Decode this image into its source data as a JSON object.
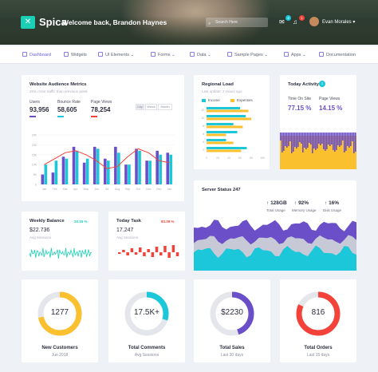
{
  "header": {
    "logo": "Spica",
    "welcome": "Welcome back, Brandon Haynes",
    "search_placeholder": "Search Here",
    "mail_badge": "4",
    "bell_badge": "1",
    "user": "Evan Morales"
  },
  "nav": [
    "Dashboard",
    "Widgets",
    "UI Elements",
    "Forms",
    "Data",
    "Sample Pages",
    "Apps",
    "Documentation"
  ],
  "audience": {
    "title": "Website Audience Metrics",
    "subtitle": "25% more traffic than previous week",
    "users_label": "Users",
    "users": "93,956",
    "bounce_label": "Bounce Rate",
    "bounce": "58,605",
    "views_label": "Page Views",
    "views": "78,254",
    "ranges": [
      "Day",
      "Week",
      "Month"
    ],
    "chart_data": {
      "type": "bar",
      "x": [
        "Jan",
        "Feb",
        "Mar",
        "Apr",
        "May",
        "Jun",
        "Jul",
        "Aug",
        "Sep",
        "Oct",
        "Nov",
        "Dec",
        "Jan"
      ],
      "yticks": [
        "25K",
        "20K",
        "15K",
        "10K",
        "5K",
        "0"
      ],
      "ylim": [
        0,
        25
      ],
      "series": [
        {
          "values": [
            5,
            6,
            14,
            19,
            11,
            19,
            13,
            19,
            10,
            18,
            12,
            17,
            16
          ],
          "color": "#6a4fc9"
        },
        {
          "values": [
            10,
            12,
            13,
            17,
            13,
            18,
            12,
            16,
            10,
            17,
            12,
            15,
            15
          ],
          "color": "#1bc7d9"
        }
      ],
      "line": [
        10,
        13,
        16,
        17,
        15,
        12,
        8,
        9,
        14,
        18,
        16,
        12,
        11
      ]
    }
  },
  "regional": {
    "title": "Regional Load",
    "subtitle": "Last update: 2 Hours ago",
    "legend": [
      "Income",
      "Expenses"
    ],
    "chart_data": {
      "type": "bar",
      "y": [
        "12",
        "10",
        "8",
        "6",
        "4",
        "2"
      ],
      "xticks": [
        "0",
        "20",
        "40",
        "60",
        "80",
        "100"
      ],
      "xlim": [
        0,
        100
      ],
      "series": [
        {
          "name": "Income",
          "values": [
            60,
            70,
            48,
            55,
            35,
            72
          ]
        },
        {
          "name": "Expenses",
          "values": [
            75,
            80,
            65,
            35,
            48,
            62
          ]
        }
      ]
    }
  },
  "today": {
    "title": "Today Activity",
    "badge": "1",
    "time_label": "Time On Site",
    "time": "77.15 %",
    "views_label": "Page Views",
    "views": "14.15 %"
  },
  "server": {
    "title": "Server Status 247",
    "stats": [
      {
        "value": "128GB",
        "label": "Total Usage"
      },
      {
        "value": "92%",
        "label": "Memory Usage"
      },
      {
        "value": "16%",
        "label": "Disk Usage"
      }
    ]
  },
  "weekly": {
    "title": "Weekly Balance",
    "change": "20.15 %",
    "value": "$22.736",
    "label": "Avg Sessions"
  },
  "task": {
    "title": "Today Task",
    "change": "83.39 %",
    "value": "17.247",
    "label": "Avg Sessions"
  },
  "donuts": [
    {
      "value": "1277",
      "title": "New Customers",
      "sub": "Jun 2018",
      "color": "#fbc02d",
      "pct": 0.72
    },
    {
      "value": "17.5K+",
      "title": "Total Comments",
      "sub": "Avg Sessions",
      "color": "#1bc7d9",
      "pct": 0.3
    },
    {
      "value": "$2230",
      "title": "Total Sales",
      "sub": "Last 30 days",
      "color": "#6a4fc9",
      "pct": 0.45
    },
    {
      "value": "816",
      "title": "Total Orders",
      "sub": "Last 15 days",
      "color": "#f3423a",
      "pct": 0.82
    }
  ]
}
